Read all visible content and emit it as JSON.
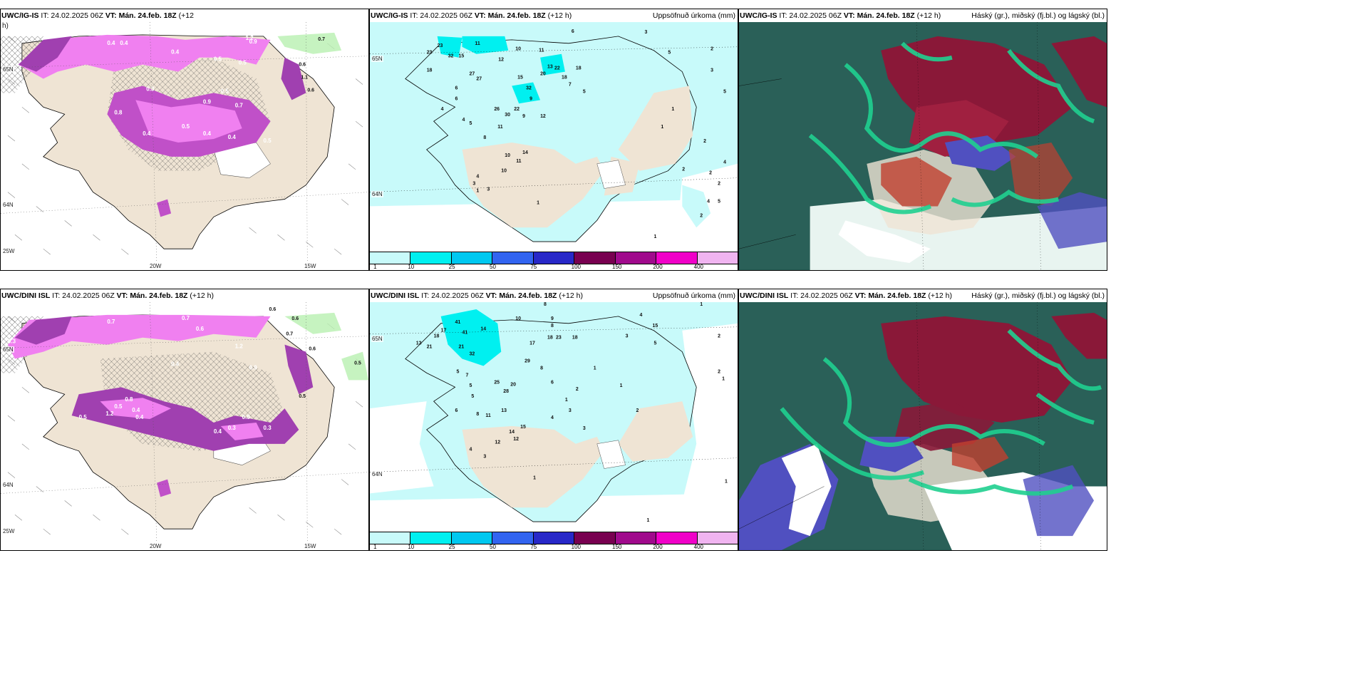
{
  "panels": {
    "top_left": {
      "header_model": "UWC/IG-IS",
      "header_it": "IT: 24.02.2025 06Z",
      "header_vt_label": "VT:",
      "header_vt": "Mán. 24.feb. 18Z",
      "header_lead": "(+12",
      "header_lead2": "h)",
      "lat_label_1": "65N",
      "lat_label_2": "64N",
      "lon_label_1": "20W",
      "lon_label_2": "15W",
      "corner_label": "25W",
      "values": [
        "0.4",
        "0.4",
        "0.4",
        "0.5",
        "0.5",
        "0.9",
        "0.7",
        "0.6",
        "1.1",
        "0.6",
        "0.5",
        "0.3",
        "0.9",
        "0.7",
        "0.4",
        "0.5",
        "0.4",
        "0.4",
        "0.8",
        "0.5",
        "0.3",
        "1.2"
      ]
    },
    "top_middle": {
      "header_model": "UWC/IG-IS",
      "header_it": "IT: 24.02.2025 06Z",
      "header_vt_label": "VT:",
      "header_vt": "Mán. 24.feb. 18Z",
      "header_lead": "(+12 h)",
      "header_right": "Uppsöfnuð úrkoma (mm)",
      "lat_label_1": "65N",
      "lat_label_2": "64N",
      "values": [
        "11",
        "10",
        "11",
        "12",
        "6",
        "3",
        "5",
        "15",
        "32",
        "27",
        "20",
        "22",
        "18",
        "26",
        "13",
        "18",
        "27",
        "15",
        "32",
        "23",
        "23",
        "18",
        "7",
        "5",
        "8",
        "11",
        "9",
        "6",
        "4",
        "4",
        "6",
        "5",
        "22",
        "30",
        "9",
        "12",
        "10",
        "14",
        "11",
        "10",
        "4",
        "3",
        "3",
        "1",
        "1",
        "2",
        "3",
        "5",
        "1",
        "2",
        "1",
        "2",
        "4",
        "2",
        "2",
        "4",
        "5",
        "2",
        "2",
        "1"
      ]
    },
    "top_right": {
      "header_model": "UWC/IG-IS",
      "header_it": "IT: 24.02.2025 06Z",
      "header_vt_label": "VT:",
      "header_vt": "Mán. 24.feb. 18Z",
      "header_lead": "(+12 h)",
      "header_right": "Háský (gr.), miðský (fj.bl.) og lágský (bl.)"
    },
    "bottom_left": {
      "header_model": "UWC/DINI ISL",
      "header_it": "IT: 24.02.2025 06Z",
      "header_vt_label": "VT:",
      "header_vt": "Mán. 24.feb. 18Z",
      "header_lead": "(+12 h)",
      "lat_label_1": "65N",
      "lat_label_2": "64N",
      "lon_label_1": "20W",
      "lon_label_2": "15W",
      "corner_label": "25W",
      "values": [
        "0.3",
        "0.7",
        "0.7",
        "0.6",
        "0.9",
        "0.6",
        "0.6",
        "0.7",
        "0.6",
        "0.5",
        "1.2",
        "0.4",
        "0.9",
        "0.5",
        "0.4",
        "1.2",
        "0.8",
        "0.4",
        "0.5",
        "0.3",
        "0.9",
        "0.3",
        "0.4",
        "0.5"
      ]
    },
    "bottom_middle": {
      "header_model": "UWC/DINI ISL",
      "header_it": "IT: 24.02.2025 06Z",
      "header_vt_label": "VT:",
      "header_vt": "Mán. 24.feb. 18Z",
      "header_lead": "(+12 h)",
      "header_right": "Uppsöfnuð úrkoma (mm)",
      "lat_label_1": "65N",
      "lat_label_2": "64N",
      "values": [
        "10",
        "8",
        "9",
        "8",
        "41",
        "17",
        "41",
        "14",
        "21",
        "32",
        "13",
        "21",
        "18",
        "17",
        "18",
        "23",
        "18",
        "29",
        "25",
        "20",
        "28",
        "7",
        "5",
        "8",
        "6",
        "13",
        "14",
        "12",
        "15",
        "12",
        "11",
        "4",
        "3",
        "6",
        "8",
        "5",
        "5",
        "4",
        "3",
        "3",
        "2",
        "1",
        "1",
        "1",
        "2",
        "3",
        "4",
        "5",
        "15",
        "2",
        "2",
        "1",
        "1",
        "1",
        "1",
        "1"
      ]
    },
    "bottom_right": {
      "header_model": "UWC/DINI ISL",
      "header_it": "IT: 24.02.2025 06Z",
      "header_vt_label": "VT:",
      "header_vt": "Mán. 24.feb. 18Z",
      "header_lead": "(+12 h)",
      "header_right": "Háský (gr.), miðský (fj.bl.) og lágský (bl.)"
    }
  },
  "colorbar": {
    "labels": [
      "1",
      "10",
      "25",
      "50",
      "75",
      "100",
      "150",
      "200",
      "400"
    ],
    "colors": [
      "#c8fafa",
      "#00f0f0",
      "#00c8f0",
      "#3264f0",
      "#2828c8",
      "#780050",
      "#a00a8c",
      "#f000c8",
      "#f0b4f0"
    ]
  },
  "colors": {
    "land": "#efe4d4",
    "sea": "#ffffff",
    "snow_pink": "#f080f0",
    "snow_purple": "#a040b0",
    "precip_light": "#c8fafa",
    "precip_cyan": "#00f0f0",
    "cloud_dark": "#2a6058",
    "cloud_high_red": "#8a1838",
    "cloud_mid_blue": "#5050c0",
    "cloud_green": "#20d090"
  }
}
